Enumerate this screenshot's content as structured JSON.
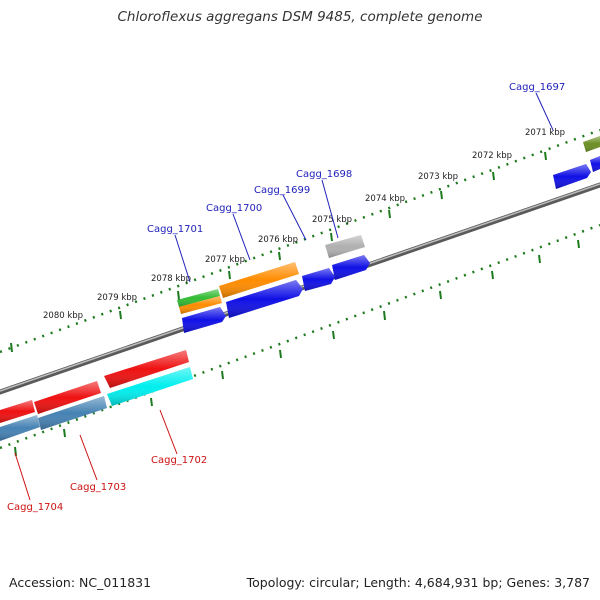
{
  "title": "Chloroflexus aggregans DSM 9485, complete genome",
  "footer": {
    "accession": "Accession: NC_011831",
    "summary": "Topology: circular; Length: 4,684,931 bp; Genes: 3,787"
  },
  "colors": {
    "backbone": "#8a8a8a",
    "ticks": "#1e7a1e",
    "gene_label_forward": "#2222bb",
    "gene_label_reverse": "#cc1111",
    "blue": "#1010e6",
    "red": "#ee1111",
    "orange": "#ff8c00",
    "green": "#33bb33",
    "gray": "#b0b0b0",
    "olive": "#6b8e23",
    "cyan": "#00eeee",
    "steelblue": "#4682b4"
  },
  "scale_labels": [
    "2071 kbp",
    "2072 kbp",
    "2073 kbp",
    "2074 kbp",
    "2075 kbp",
    "2076 kbp",
    "2077 kbp",
    "2078 kbp",
    "2079 kbp",
    "2080 kbp"
  ],
  "gene_labels": [
    {
      "name": "Cagg_1697",
      "strand": "forward"
    },
    {
      "name": "Cagg_1698",
      "strand": "forward"
    },
    {
      "name": "Cagg_1699",
      "strand": "forward"
    },
    {
      "name": "Cagg_1700",
      "strand": "forward"
    },
    {
      "name": "Cagg_1701",
      "strand": "forward"
    },
    {
      "name": "Cagg_1702",
      "strand": "reverse"
    },
    {
      "name": "Cagg_1703",
      "strand": "reverse"
    },
    {
      "name": "Cagg_1704",
      "strand": "reverse"
    }
  ]
}
